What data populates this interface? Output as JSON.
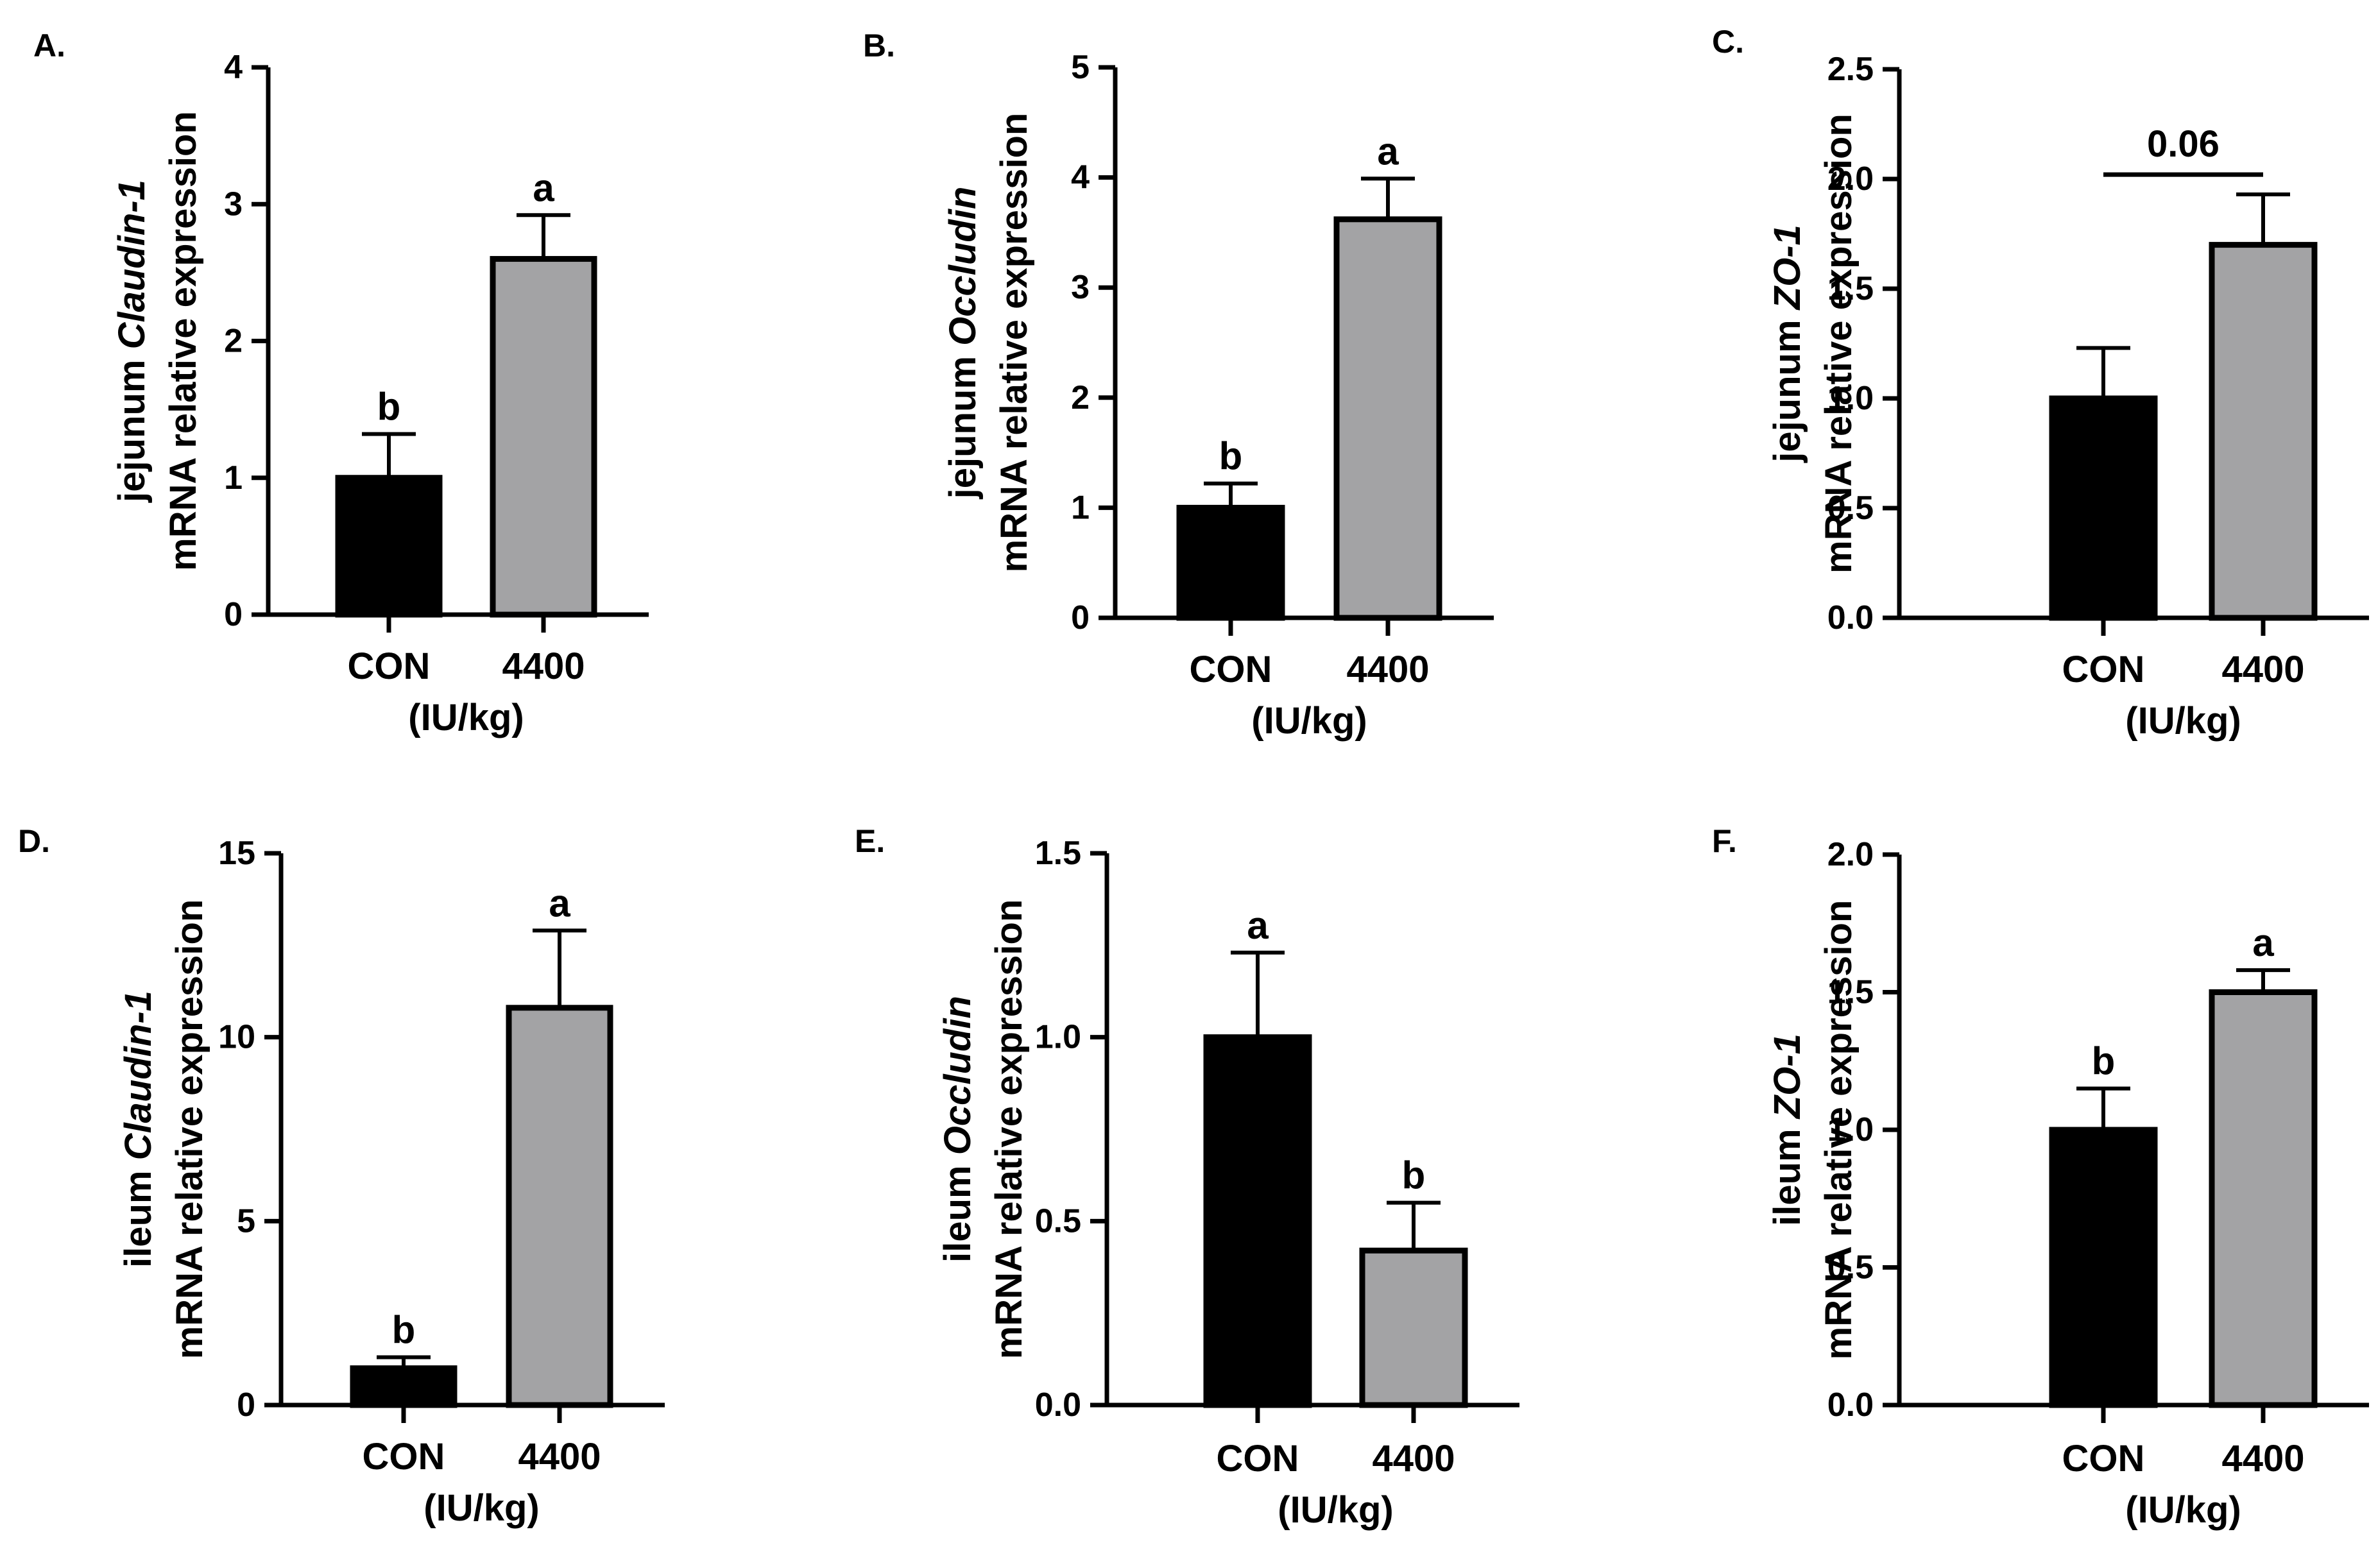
{
  "colors": {
    "con_bar": "#000000",
    "treat_bar": "#a3a3a5",
    "axis": "#000000",
    "background": "#ffffff"
  },
  "chart_data": [
    {
      "panel_label": "A.",
      "type": "bar",
      "ylabel_prefix": "jejunum ",
      "ylabel_gene": "Claudin-1",
      "ylabel_line2": "mRNA relative expression",
      "categories": [
        "CON",
        "4400"
      ],
      "xlabel": "(IU/kg)",
      "values": [
        1.0,
        2.6
      ],
      "errors": [
        0.32,
        0.32
      ],
      "letters": [
        "b",
        "a"
      ],
      "ylim": [
        0,
        4
      ],
      "yticks": [
        "0",
        "1",
        "2",
        "3",
        "4"
      ],
      "ytick_values": [
        0,
        1,
        2,
        3,
        4
      ],
      "pvalue": null
    },
    {
      "panel_label": "B.",
      "type": "bar",
      "ylabel_prefix": "jejunum ",
      "ylabel_gene": "Occludin",
      "ylabel_line2": "mRNA relative expression",
      "categories": [
        "CON",
        "4400"
      ],
      "xlabel": "(IU/kg)",
      "values": [
        1.0,
        3.62
      ],
      "errors": [
        0.22,
        0.37
      ],
      "letters": [
        "b",
        "a"
      ],
      "ylim": [
        0,
        5
      ],
      "yticks": [
        "0",
        "1",
        "2",
        "3",
        "4",
        "5"
      ],
      "ytick_values": [
        0,
        1,
        2,
        3,
        4,
        5
      ],
      "pvalue": null
    },
    {
      "panel_label": "C.",
      "type": "bar",
      "ylabel_prefix": "jejunum ",
      "ylabel_gene": "ZO-1",
      "ylabel_line2": "mRNA relative expression",
      "categories": [
        "CON",
        "4400"
      ],
      "xlabel": "(IU/kg)",
      "values": [
        1.0,
        1.7
      ],
      "errors": [
        0.23,
        0.23
      ],
      "letters": [
        "",
        ""
      ],
      "ylim": [
        0,
        2.5
      ],
      "yticks": [
        "0.0",
        "0.5",
        "1.0",
        "1.5",
        "2.0",
        "2.5"
      ],
      "ytick_values": [
        0,
        0.5,
        1.0,
        1.5,
        2.0,
        2.5
      ],
      "pvalue": "0.06"
    },
    {
      "panel_label": "D.",
      "type": "bar",
      "ylabel_prefix": "ileum ",
      "ylabel_gene": "Claudin-1",
      "ylabel_line2": "mRNA relative expression",
      "categories": [
        "CON",
        "4400"
      ],
      "xlabel": "(IU/kg)",
      "values": [
        1.0,
        10.8
      ],
      "errors": [
        0.3,
        2.1
      ],
      "letters": [
        "b",
        "a"
      ],
      "ylim": [
        0,
        15
      ],
      "yticks": [
        "0",
        "5",
        "10",
        "15"
      ],
      "ytick_values": [
        0,
        5,
        10,
        15
      ],
      "pvalue": null
    },
    {
      "panel_label": "E.",
      "type": "bar",
      "ylabel_prefix": "ileum ",
      "ylabel_gene": "Occludin",
      "ylabel_line2": "mRNA relative expression",
      "categories": [
        "CON",
        "4400"
      ],
      "xlabel": "(IU/kg)",
      "values": [
        1.0,
        0.42
      ],
      "errors": [
        0.23,
        0.13
      ],
      "letters": [
        "a",
        "b"
      ],
      "ylim": [
        0,
        1.5
      ],
      "yticks": [
        "0.0",
        "0.5",
        "1.0",
        "1.5"
      ],
      "ytick_values": [
        0,
        0.5,
        1.0,
        1.5
      ],
      "pvalue": null
    },
    {
      "panel_label": "F.",
      "type": "bar",
      "ylabel_prefix": "ileum ",
      "ylabel_gene": "ZO-1",
      "ylabel_line2": "mRNA relative expression",
      "categories": [
        "CON",
        "4400"
      ],
      "xlabel": "(IU/kg)",
      "values": [
        1.0,
        1.5
      ],
      "errors": [
        0.15,
        0.08
      ],
      "letters": [
        "b",
        "a"
      ],
      "ylim": [
        0,
        2.0
      ],
      "yticks": [
        "0.0",
        "0.5",
        "1.0",
        "1.5",
        "2.0"
      ],
      "ytick_values": [
        0,
        0.5,
        1.0,
        1.5,
        2.0
      ],
      "pvalue": null
    }
  ]
}
